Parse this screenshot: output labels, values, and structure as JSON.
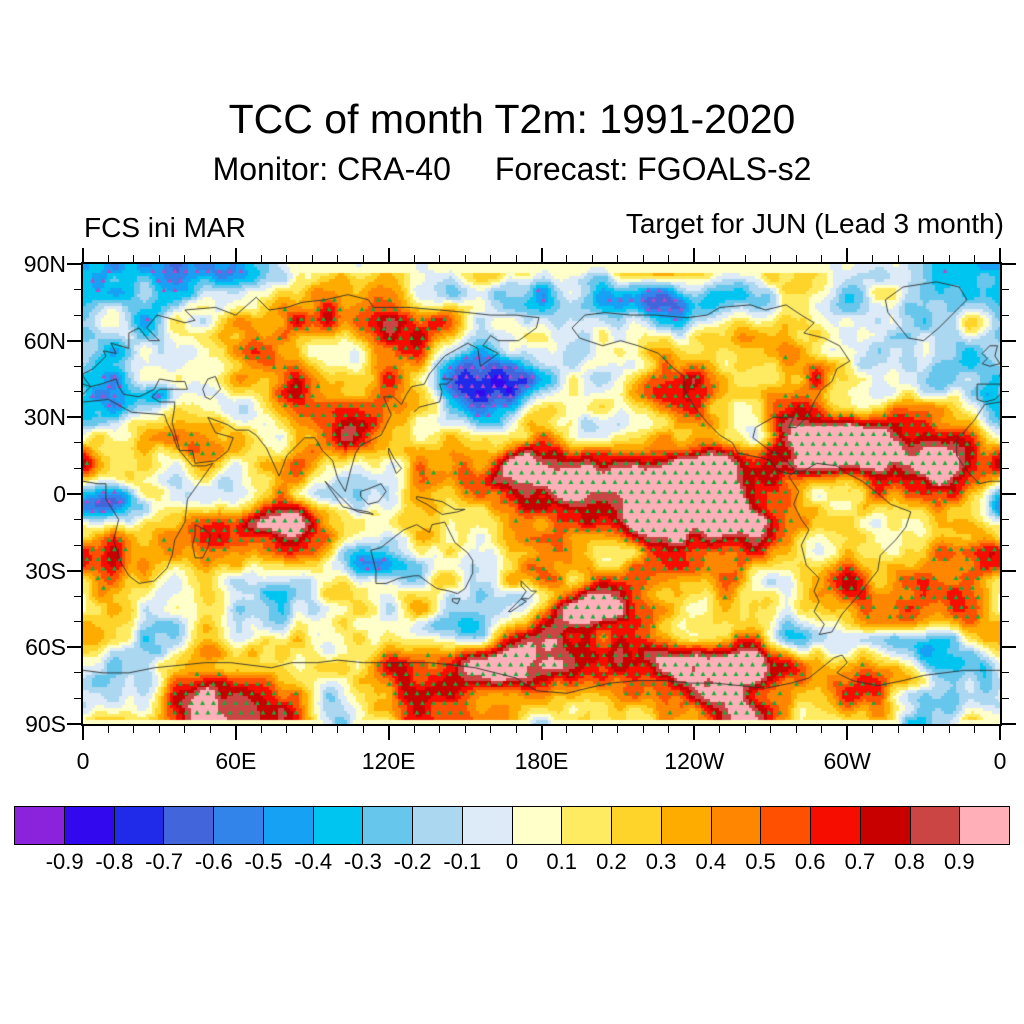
{
  "header": {
    "title": "TCC of month T2m: 1991-2020",
    "monitor_label": "Monitor: CRA-40",
    "forecast_label": "Forecast: FGOALS-s2",
    "init_label": "FCS ini MAR",
    "target_label": "Target for JUN (Lead 3 month)"
  },
  "chart_data": {
    "type": "heatmap",
    "subtype": "filled-contour global correlation map, equirectangular projection centered on 180",
    "title": "TCC of month T2m: 1991-2020",
    "monitor_dataset": "CRA-40",
    "forecast_dataset": "FGOALS-s2",
    "forecast_init": "MAR",
    "forecast_target": "JUN (Lead 3 month)",
    "x_axis": {
      "tick_labels": [
        "0",
        "60E",
        "120E",
        "180E",
        "120W",
        "60W",
        "0"
      ],
      "tick_positions_deg": [
        0,
        60,
        120,
        180,
        240,
        300,
        360
      ],
      "minor_interval_deg": 10
    },
    "y_axis": {
      "tick_labels": [
        "90N",
        "60N",
        "30N",
        "0",
        "30S",
        "60S",
        "90S"
      ],
      "tick_positions_deg": [
        90,
        60,
        30,
        0,
        -30,
        -60,
        -90
      ],
      "minor_interval_deg": 10
    },
    "value_range": [
      -1,
      1
    ],
    "contour_interval": 0.1,
    "colorbar": {
      "boundary_labels": [
        "-0.9",
        "-0.8",
        "-0.7",
        "-0.6",
        "-0.5",
        "-0.4",
        "-0.3",
        "-0.2",
        "-0.1",
        "0",
        "0.1",
        "0.2",
        "0.3",
        "0.4",
        "0.5",
        "0.6",
        "0.7",
        "0.8",
        "0.9"
      ],
      "colors": [
        "#8B22DC",
        "#3209EE",
        "#1F2BE8",
        "#4365DB",
        "#3283EA",
        "#16A1F5",
        "#00C5F0",
        "#66C6EC",
        "#ABD7F0",
        "#DCEBF7",
        "#FFFFC9",
        "#FFEB61",
        "#FFD42A",
        "#FFAC00",
        "#FF8600",
        "#FF4F00",
        "#F70C00",
        "#C90000",
        "#CC4545",
        "#FFAFB8"
      ]
    },
    "stipple": {
      "positive_color": "#0FAF3C",
      "negative_color": "#BE46C8"
    },
    "coastline_color": "#2F2F2F"
  }
}
